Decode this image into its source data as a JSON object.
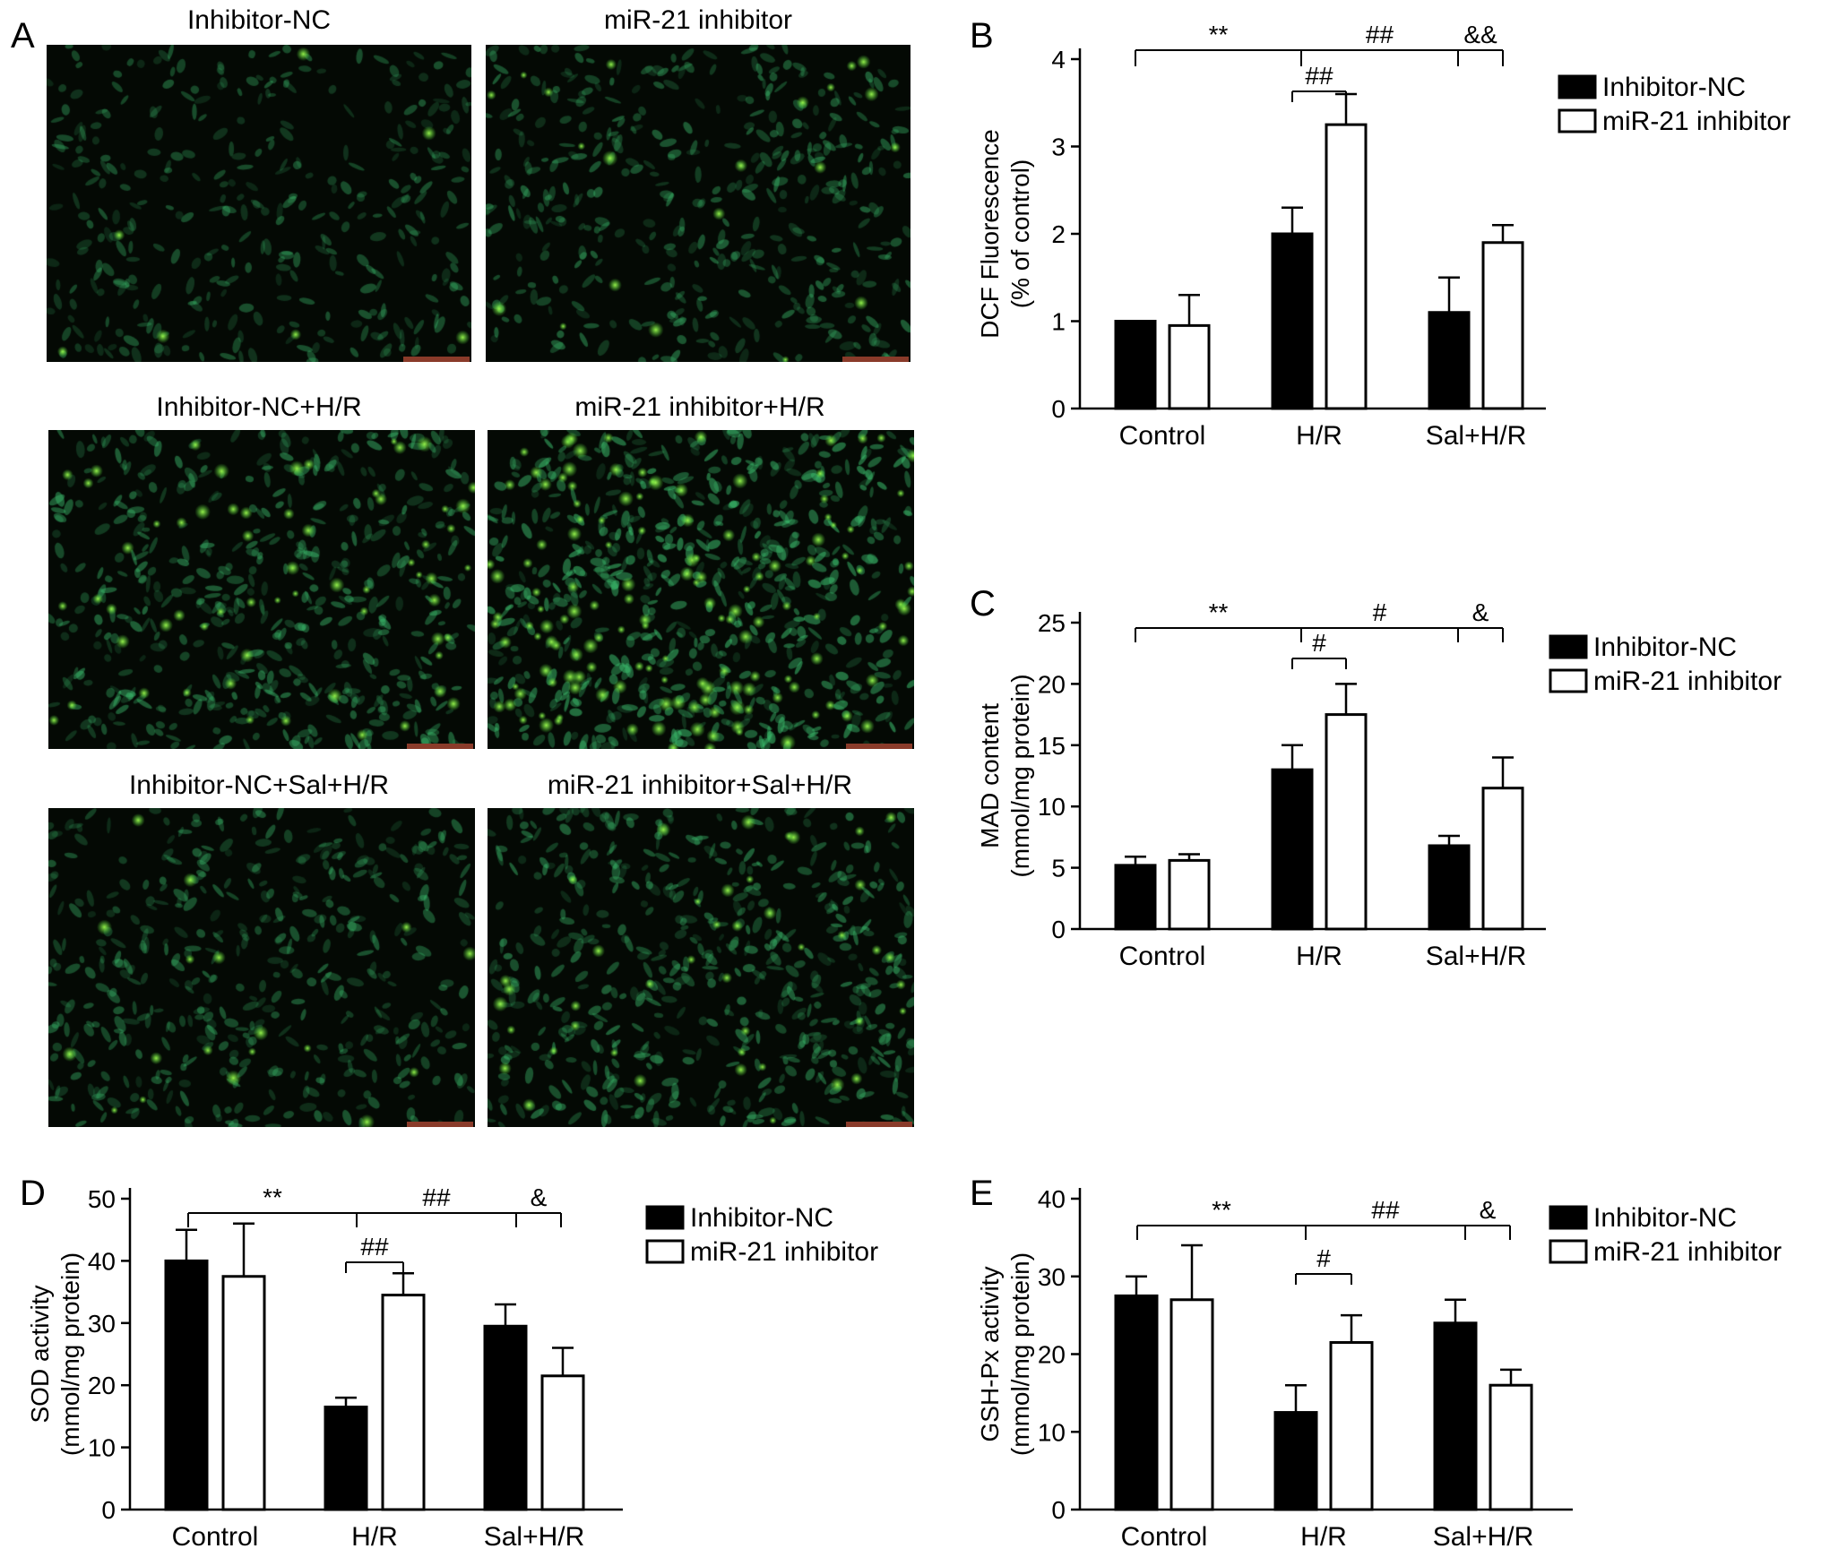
{
  "panels": {
    "A": {
      "letter": "A",
      "images": [
        {
          "label": "Inhibitor-NC",
          "density": 350,
          "brightness": 0.45,
          "bright_fraction": 0.02
        },
        {
          "label": "miR-21 inhibitor",
          "density": 420,
          "brightness": 0.55,
          "bright_fraction": 0.05
        },
        {
          "label": "Inhibitor-NC+H/R",
          "density": 520,
          "brightness": 0.6,
          "bright_fraction": 0.12
        },
        {
          "label": "miR-21 inhibitor+H/R",
          "density": 650,
          "brightness": 0.75,
          "bright_fraction": 0.22
        },
        {
          "label": "Inhibitor-NC+Sal+H/R",
          "density": 450,
          "brightness": 0.5,
          "bright_fraction": 0.04
        },
        {
          "label": "miR-21 inhibitor+Sal+H/R",
          "density": 550,
          "brightness": 0.6,
          "bright_fraction": 0.08
        }
      ]
    },
    "B": {
      "letter": "B"
    },
    "C": {
      "letter": "C"
    },
    "D": {
      "letter": "D"
    },
    "E": {
      "letter": "E"
    }
  },
  "colors": {
    "bar_black": "#000000",
    "bar_white": "#ffffff",
    "cell_green": "#3fd07a",
    "bright_green": "#7dff4a"
  },
  "chart_data": [
    {
      "id": "B",
      "type": "bar",
      "categories": [
        "Control",
        "H/R",
        "Sal+H/R"
      ],
      "series": [
        {
          "name": "Inhibitor-NC",
          "values": [
            1.0,
            2.0,
            1.1
          ],
          "errors": [
            0.0,
            0.3,
            0.4
          ]
        },
        {
          "name": "miR-21 inhibitor",
          "values": [
            0.95,
            3.25,
            1.9
          ],
          "errors": [
            0.35,
            0.35,
            0.2
          ]
        }
      ],
      "ylabel": [
        "DCF Fluorescence",
        "(% of control)"
      ],
      "ylim": [
        0,
        4
      ],
      "yticks": [
        0,
        1,
        2,
        3,
        4
      ],
      "legend": "right",
      "annotations": {
        "top": [
          "**",
          "##",
          "&&"
        ],
        "inner": "##"
      }
    },
    {
      "id": "C",
      "type": "bar",
      "categories": [
        "Control",
        "H/R",
        "Sal+H/R"
      ],
      "series": [
        {
          "name": "Inhibitor-NC",
          "values": [
            5.2,
            13.0,
            6.8
          ],
          "errors": [
            0.7,
            2.0,
            0.8
          ]
        },
        {
          "name": "miR-21 inhibitor",
          "values": [
            5.6,
            17.5,
            11.5
          ],
          "errors": [
            0.5,
            2.5,
            2.5
          ]
        }
      ],
      "ylabel": [
        "MAD content",
        "(mmol/mg protein)"
      ],
      "ylim": [
        0,
        25
      ],
      "yticks": [
        0,
        5,
        10,
        15,
        20,
        25
      ],
      "legend": "right",
      "annotations": {
        "top": [
          "**",
          "#",
          "&"
        ],
        "inner": "#"
      }
    },
    {
      "id": "D",
      "type": "bar",
      "categories": [
        "Control",
        "H/R",
        "Sal+H/R"
      ],
      "series": [
        {
          "name": "Inhibitor-NC",
          "values": [
            40.0,
            16.5,
            29.5
          ],
          "errors": [
            5.0,
            1.5,
            3.5
          ]
        },
        {
          "name": "miR-21 inhibitor",
          "values": [
            37.5,
            34.5,
            21.5
          ],
          "errors": [
            8.5,
            3.5,
            4.5
          ]
        }
      ],
      "ylabel": [
        "SOD activity",
        "(mmol/mg protein)"
      ],
      "ylim": [
        0,
        50
      ],
      "yticks": [
        0,
        10,
        20,
        30,
        40,
        50
      ],
      "legend": "right",
      "annotations": {
        "top": [
          "**",
          "##",
          "&"
        ],
        "inner": "##"
      }
    },
    {
      "id": "E",
      "type": "bar",
      "categories": [
        "Control",
        "H/R",
        "Sal+H/R"
      ],
      "series": [
        {
          "name": "Inhibitor-NC",
          "values": [
            27.5,
            12.5,
            24.0
          ],
          "errors": [
            2.5,
            3.5,
            3.0
          ]
        },
        {
          "name": "miR-21 inhibitor",
          "values": [
            27.0,
            21.5,
            16.0
          ],
          "errors": [
            7.0,
            3.5,
            2.0
          ]
        }
      ],
      "ylabel": [
        "GSH-Px activity",
        "(mmol/mg protein)"
      ],
      "ylim": [
        0,
        40
      ],
      "yticks": [
        0,
        10,
        20,
        30,
        40
      ],
      "legend": "right",
      "annotations": {
        "top": [
          "**",
          "##",
          "&"
        ],
        "inner": "#"
      }
    }
  ]
}
